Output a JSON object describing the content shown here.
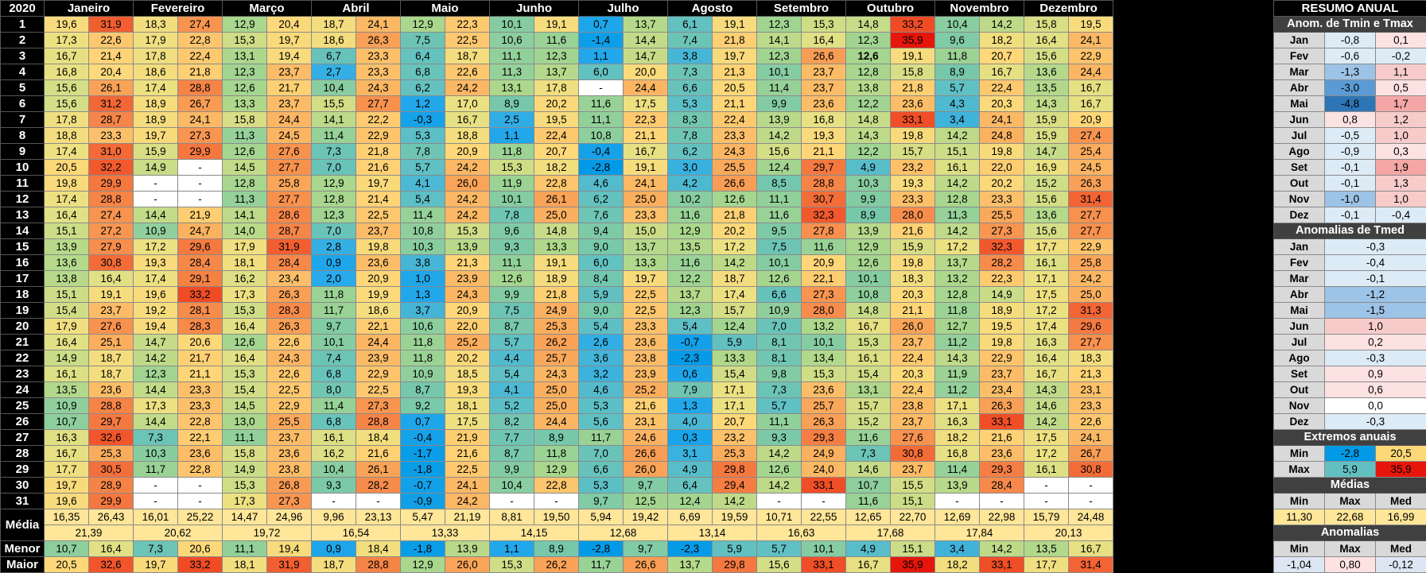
{
  "year": "2020",
  "months": [
    "Janeiro",
    "Fevereiro",
    "Março",
    "Abril",
    "Maio",
    "Junho",
    "Julho",
    "Agosto",
    "Setembro",
    "Outubro",
    "Novembro",
    "Dezembro"
  ],
  "days": [
    [
      "19,6",
      "31,9",
      "18,3",
      "27,4",
      "12,9",
      "20,4",
      "18,7",
      "24,1",
      "12,9",
      "22,3",
      "10,1",
      "19,1",
      "0,7",
      "13,7",
      "6,1",
      "19,1",
      "12,3",
      "15,3",
      "14,8",
      "33,2",
      "10,4",
      "14,2",
      "15,8",
      "19,5"
    ],
    [
      "17,3",
      "22,6",
      "17,9",
      "22,8",
      "15,3",
      "19,7",
      "18,6",
      "26,3",
      "7,5",
      "22,5",
      "10,6",
      "11,6",
      "-1,4",
      "14,4",
      "7,4",
      "21,8",
      "14,1",
      "16,4",
      "12,3",
      "35,9",
      "9,6",
      "18,2",
      "16,4",
      "24,1"
    ],
    [
      "16,7",
      "21,4",
      "17,8",
      "22,4",
      "13,1",
      "19,4",
      "6,7",
      "23,3",
      "6,4",
      "18,7",
      "11,1",
      "12,3",
      "1,1",
      "14,7",
      "3,8",
      "19,7",
      "12,3",
      "26,6",
      "12,6",
      "19,1",
      "11,8",
      "20,7",
      "15,6",
      "22,9"
    ],
    [
      "16,8",
      "20,4",
      "18,6",
      "21,8",
      "12,3",
      "23,7",
      "2,7",
      "23,3",
      "6,8",
      "22,6",
      "11,3",
      "13,7",
      "6,0",
      "20,0",
      "7,3",
      "21,3",
      "10,1",
      "23,7",
      "12,8",
      "15,8",
      "8,9",
      "16,7",
      "13,6",
      "24,4"
    ],
    [
      "15,6",
      "26,1",
      "17,4",
      "28,8",
      "12,6",
      "21,7",
      "10,4",
      "24,3",
      "6,2",
      "24,2",
      "13,1",
      "17,8",
      "-",
      "24,4",
      "6,6",
      "20,5",
      "11,4",
      "23,7",
      "13,8",
      "21,8",
      "5,7",
      "22,4",
      "13,5",
      "16,7"
    ],
    [
      "15,6",
      "31,2",
      "18,9",
      "26,7",
      "13,3",
      "23,7",
      "15,5",
      "27,7",
      "1,2",
      "17,0",
      "8,9",
      "20,2",
      "11,6",
      "17,5",
      "5,3",
      "21,1",
      "9,9",
      "23,6",
      "12,2",
      "23,6",
      "4,3",
      "20,3",
      "14,3",
      "16,7"
    ],
    [
      "17,8",
      "28,7",
      "18,9",
      "24,1",
      "15,8",
      "24,4",
      "14,1",
      "22,2",
      "-0,3",
      "16,7",
      "2,5",
      "19,5",
      "11,1",
      "22,3",
      "8,3",
      "22,4",
      "13,9",
      "16,8",
      "14,8",
      "33,1",
      "3,4",
      "24,1",
      "15,9",
      "20,9"
    ],
    [
      "18,8",
      "23,3",
      "19,7",
      "27,3",
      "11,3",
      "24,5",
      "11,4",
      "22,9",
      "5,3",
      "18,8",
      "1,1",
      "22,4",
      "10,8",
      "21,1",
      "7,8",
      "23,3",
      "14,2",
      "19,3",
      "14,3",
      "19,8",
      "14,2",
      "24,8",
      "15,9",
      "27,4"
    ],
    [
      "17,4",
      "31,0",
      "15,9",
      "29,9",
      "12,6",
      "27,6",
      "7,3",
      "21,8",
      "7,8",
      "20,9",
      "11,8",
      "20,7",
      "-0,4",
      "16,7",
      "6,2",
      "24,3",
      "15,6",
      "21,1",
      "12,2",
      "15,7",
      "15,1",
      "19,8",
      "14,7",
      "25,4"
    ],
    [
      "20,5",
      "32,2",
      "14,9",
      "-",
      "14,5",
      "27,7",
      "7,0",
      "21,6",
      "5,7",
      "24,2",
      "15,3",
      "18,2",
      "-2,8",
      "19,1",
      "3,0",
      "25,5",
      "12,4",
      "29,7",
      "4,9",
      "23,2",
      "16,1",
      "22,0",
      "16,9",
      "24,5"
    ],
    [
      "19,8",
      "29,9",
      "-",
      "-",
      "12,8",
      "25,8",
      "12,9",
      "19,7",
      "4,1",
      "26,0",
      "11,9",
      "22,8",
      "4,6",
      "24,1",
      "4,2",
      "26,6",
      "8,5",
      "28,8",
      "10,3",
      "19,3",
      "14,2",
      "20,2",
      "15,2",
      "26,3"
    ],
    [
      "17,4",
      "28,8",
      "-",
      "-",
      "11,3",
      "27,7",
      "12,8",
      "21,4",
      "5,4",
      "24,2",
      "10,1",
      "26,1",
      "6,2",
      "25,0",
      "10,2",
      "12,6",
      "11,1",
      "30,7",
      "9,9",
      "23,3",
      "12,8",
      "23,3",
      "15,6",
      "31,4"
    ],
    [
      "16,4",
      "27,4",
      "14,4",
      "21,9",
      "14,1",
      "28,6",
      "12,3",
      "22,5",
      "11,4",
      "24,2",
      "7,8",
      "25,0",
      "7,6",
      "23,3",
      "11,6",
      "21,8",
      "11,6",
      "32,3",
      "8,9",
      "28,0",
      "11,3",
      "25,5",
      "13,6",
      "27,7"
    ],
    [
      "15,1",
      "27,2",
      "10,9",
      "24,7",
      "14,0",
      "28,7",
      "7,0",
      "23,7",
      "10,8",
      "15,3",
      "9,6",
      "14,8",
      "9,4",
      "15,0",
      "12,9",
      "20,2",
      "9,5",
      "27,8",
      "13,9",
      "21,6",
      "14,2",
      "27,3",
      "15,6",
      "27,7"
    ],
    [
      "13,9",
      "27,9",
      "17,2",
      "29,6",
      "17,9",
      "31,9",
      "2,8",
      "19,8",
      "10,3",
      "13,9",
      "9,3",
      "13,3",
      "9,0",
      "13,7",
      "13,5",
      "17,2",
      "7,5",
      "11,6",
      "12,9",
      "15,9",
      "17,2",
      "32,3",
      "17,7",
      "22,9"
    ],
    [
      "13,6",
      "30,8",
      "19,3",
      "28,4",
      "18,1",
      "28,4",
      "0,9",
      "23,6",
      "3,8",
      "21,3",
      "11,1",
      "19,1",
      "6,0",
      "13,3",
      "11,6",
      "14,2",
      "10,1",
      "20,9",
      "12,6",
      "19,8",
      "13,7",
      "28,2",
      "16,1",
      "25,8"
    ],
    [
      "13,8",
      "16,4",
      "17,4",
      "29,1",
      "16,2",
      "23,4",
      "2,0",
      "20,9",
      "1,0",
      "23,9",
      "12,6",
      "18,9",
      "8,4",
      "19,7",
      "12,2",
      "18,7",
      "12,6",
      "22,1",
      "10,1",
      "18,3",
      "13,2",
      "22,3",
      "17,1",
      "24,2"
    ],
    [
      "15,1",
      "19,1",
      "19,6",
      "33,2",
      "17,3",
      "26,3",
      "11,8",
      "19,9",
      "1,3",
      "24,3",
      "9,9",
      "21,8",
      "5,9",
      "22,5",
      "13,7",
      "17,4",
      "6,6",
      "27,3",
      "10,8",
      "20,3",
      "12,8",
      "14,9",
      "17,5",
      "25,0"
    ],
    [
      "15,4",
      "23,7",
      "19,2",
      "28,1",
      "15,3",
      "28,3",
      "11,7",
      "18,6",
      "3,7",
      "20,9",
      "7,5",
      "24,9",
      "9,0",
      "22,5",
      "12,3",
      "15,7",
      "10,9",
      "28,0",
      "14,8",
      "21,1",
      "11,8",
      "18,9",
      "17,2",
      "31,3"
    ],
    [
      "17,9",
      "27,6",
      "19,4",
      "28,3",
      "16,4",
      "26,3",
      "9,7",
      "22,1",
      "10,6",
      "22,0",
      "8,7",
      "25,3",
      "5,4",
      "23,3",
      "5,4",
      "12,4",
      "7,0",
      "13,2",
      "16,7",
      "26,0",
      "12,7",
      "19,5",
      "17,4",
      "29,6"
    ],
    [
      "16,4",
      "25,1",
      "14,7",
      "20,6",
      "12,6",
      "22,6",
      "10,1",
      "24,4",
      "11,8",
      "25,2",
      "5,7",
      "26,2",
      "2,6",
      "23,6",
      "-0,7",
      "5,9",
      "8,1",
      "10,1",
      "15,3",
      "23,7",
      "11,2",
      "19,8",
      "16,3",
      "27,7"
    ],
    [
      "14,9",
      "18,7",
      "14,2",
      "21,7",
      "16,4",
      "24,3",
      "7,4",
      "23,9",
      "11,8",
      "20,2",
      "4,4",
      "25,7",
      "3,6",
      "23,8",
      "-2,3",
      "13,3",
      "8,1",
      "13,4",
      "16,1",
      "22,4",
      "14,3",
      "22,9",
      "16,4",
      "18,3"
    ],
    [
      "16,1",
      "18,7",
      "12,3",
      "21,1",
      "15,3",
      "22,6",
      "6,8",
      "22,9",
      "10,9",
      "18,5",
      "5,4",
      "24,3",
      "3,2",
      "23,9",
      "0,6",
      "15,4",
      "9,8",
      "15,3",
      "15,4",
      "20,3",
      "11,9",
      "23,7",
      "16,7",
      "21,3"
    ],
    [
      "13,5",
      "23,6",
      "14,4",
      "23,3",
      "15,4",
      "22,5",
      "8,0",
      "22,5",
      "8,7",
      "19,3",
      "4,1",
      "25,0",
      "4,6",
      "25,2",
      "7,9",
      "17,1",
      "7,3",
      "23,6",
      "13,1",
      "22,4",
      "11,2",
      "23,4",
      "14,3",
      "23,1"
    ],
    [
      "10,9",
      "28,8",
      "17,3",
      "23,3",
      "14,5",
      "22,9",
      "11,4",
      "27,3",
      "9,2",
      "18,1",
      "5,2",
      "25,0",
      "5,3",
      "21,6",
      "1,3",
      "17,1",
      "5,7",
      "25,7",
      "15,7",
      "23,8",
      "17,1",
      "26,3",
      "14,6",
      "23,3"
    ],
    [
      "10,7",
      "29,7",
      "14,4",
      "22,8",
      "13,0",
      "25,5",
      "6,8",
      "28,8",
      "0,7",
      "17,5",
      "8,2",
      "24,4",
      "5,6",
      "23,1",
      "4,0",
      "20,7",
      "11,1",
      "26,3",
      "15,2",
      "23,7",
      "16,3",
      "33,1",
      "14,2",
      "22,6"
    ],
    [
      "16,3",
      "32,6",
      "7,3",
      "22,1",
      "11,1",
      "23,7",
      "16,1",
      "18,4",
      "-0,4",
      "21,9",
      "7,7",
      "8,9",
      "11,7",
      "24,6",
      "0,3",
      "23,2",
      "9,3",
      "29,3",
      "11,6",
      "27,6",
      "18,2",
      "21,6",
      "17,5",
      "24,1"
    ],
    [
      "16,7",
      "25,3",
      "10,3",
      "23,6",
      "15,8",
      "23,6",
      "16,2",
      "21,6",
      "-1,7",
      "21,6",
      "8,7",
      "11,8",
      "7,0",
      "26,6",
      "3,1",
      "25,3",
      "14,2",
      "24,9",
      "7,3",
      "30,8",
      "16,8",
      "23,6",
      "17,2",
      "26,7"
    ],
    [
      "17,7",
      "30,5",
      "11,7",
      "22,8",
      "14,9",
      "23,8",
      "10,4",
      "26,1",
      "-1,8",
      "22,5",
      "9,9",
      "12,9",
      "6,6",
      "26,0",
      "4,9",
      "29,8",
      "12,6",
      "24,0",
      "14,6",
      "23,7",
      "11,4",
      "29,3",
      "16,1",
      "30,8"
    ],
    [
      "19,7",
      "28,9",
      "-",
      "-",
      "15,3",
      "26,8",
      "9,3",
      "28,2",
      "-0,7",
      "24,1",
      "10,4",
      "22,8",
      "5,3",
      "9,7",
      "6,4",
      "29,4",
      "14,2",
      "33,1",
      "10,7",
      "15,5",
      "13,9",
      "28,4",
      "-",
      "-"
    ],
    [
      "19,6",
      "29,9",
      "-",
      "-",
      "17,3",
      "27,3",
      "-",
      "-",
      "-0,9",
      "24,2",
      "-",
      "-",
      "9,7",
      "12,5",
      "12,4",
      "14,2",
      "-",
      "-",
      "11,6",
      "15,1",
      "-",
      "-",
      "-",
      "-"
    ]
  ],
  "media": [
    "16,35",
    "26,43",
    "16,01",
    "25,22",
    "14,47",
    "24,96",
    "9,96",
    "23,13",
    "5,47",
    "21,19",
    "8,81",
    "19,50",
    "5,94",
    "19,42",
    "6,69",
    "19,59",
    "10,71",
    "22,55",
    "12,65",
    "22,70",
    "12,69",
    "22,98",
    "15,79",
    "24,48"
  ],
  "media_tmed": [
    "21,39",
    "20,62",
    "19,72",
    "16,54",
    "13,33",
    "14,15",
    "12,68",
    "13,14",
    "16,63",
    "17,68",
    "17,84",
    "20,13"
  ],
  "menor": [
    "10,7",
    "16,4",
    "7,3",
    "20,6",
    "11,1",
    "19,4",
    "0,9",
    "18,4",
    "-1,8",
    "13,9",
    "1,1",
    "8,9",
    "-2,8",
    "9,7",
    "-2,3",
    "5,9",
    "5,7",
    "10,1",
    "4,9",
    "15,1",
    "3,4",
    "14,2",
    "13,5",
    "16,7"
  ],
  "maior": [
    "20,5",
    "32,6",
    "19,7",
    "33,2",
    "18,1",
    "31,9",
    "18,7",
    "28,8",
    "12,9",
    "26,0",
    "15,3",
    "26,2",
    "11,7",
    "26,6",
    "13,7",
    "29,8",
    "15,6",
    "33,1",
    "16,7",
    "35,9",
    "18,2",
    "33,1",
    "17,7",
    "31,4"
  ],
  "labels": {
    "media": "Média",
    "menor": "Menor",
    "maior": "Maior"
  },
  "side": {
    "title": "RESUMO ANUAL",
    "h_anom_tmin_tmax": "Anom. de Tmin e Tmax",
    "anom_tmin_tmax": [
      [
        "Jan",
        "-0,8",
        "0,1"
      ],
      [
        "Fev",
        "-0,6",
        "-0,2"
      ],
      [
        "Mar",
        "-1,3",
        "1,1"
      ],
      [
        "Abr",
        "-3,0",
        "0,5"
      ],
      [
        "Mai",
        "-4,8",
        "1,7"
      ],
      [
        "Jun",
        "0,8",
        "1,2"
      ],
      [
        "Jul",
        "-0,5",
        "1,0"
      ],
      [
        "Ago",
        "-0,9",
        "0,3"
      ],
      [
        "Set",
        "-0,1",
        "1,9"
      ],
      [
        "Out",
        "-0,1",
        "1,3"
      ],
      [
        "Nov",
        "-1,0",
        "1,0"
      ],
      [
        "Dez",
        "-0,1",
        "-0,4"
      ]
    ],
    "h_anom_tmed": "Anomalias de Tmed",
    "anom_tmed": [
      [
        "Jan",
        "-0,3"
      ],
      [
        "Fev",
        "-0,4"
      ],
      [
        "Mar",
        "-0,1"
      ],
      [
        "Abr",
        "-1,2"
      ],
      [
        "Mai",
        "-1,5"
      ],
      [
        "Jun",
        "1,0"
      ],
      [
        "Jul",
        "0,2"
      ],
      [
        "Ago",
        "-0,3"
      ],
      [
        "Set",
        "0,9"
      ],
      [
        "Out",
        "0,6"
      ],
      [
        "Nov",
        "0,0"
      ],
      [
        "Dez",
        "-0,3"
      ]
    ],
    "h_extremos": "Extremos anuais",
    "extremos": [
      [
        "Min",
        "-2,8",
        "20,5"
      ],
      [
        "Max",
        "5,9",
        "35,9"
      ]
    ],
    "h_medias": "Médias",
    "col_min": "Min",
    "col_max": "Max",
    "col_med": "Med",
    "medias": [
      "11,30",
      "22,68",
      "16,99"
    ],
    "h_anomalias": "Anomalias",
    "anomalias": [
      "-1,04",
      "0,80",
      "-0,12"
    ]
  },
  "colors": {
    "background": "#000000",
    "grid": "#8a8a8a",
    "header_bg": "#404040",
    "label_bg": "#d9d9d9"
  }
}
